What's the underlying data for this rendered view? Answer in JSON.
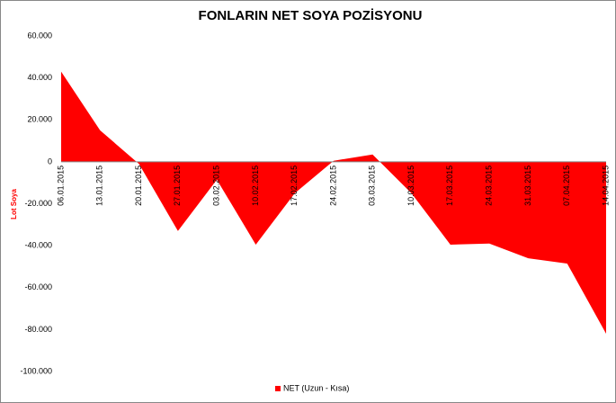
{
  "chart_data": {
    "type": "area",
    "title": "FONLARIN NET SOYA POZİSYONU",
    "y_label": "Lot Soya",
    "x": [
      "06.01.2015",
      "13.01.2015",
      "20.01.2015",
      "27.01.2015",
      "03.02.2015",
      "10.02.2015",
      "17.02.2015",
      "24.02.2015",
      "03.03.2015",
      "10.03.2015",
      "17.03.2015",
      "24.03.2015",
      "31.03.2015",
      "07.04.2015",
      "14.04.2015"
    ],
    "series": [
      {
        "name": "NET (Uzun - Kısa)",
        "color": "#ff0000",
        "values": [
          43000,
          15000,
          -1000,
          -33000,
          -8500,
          -39500,
          -15000,
          500,
          3500,
          -15000,
          -39500,
          -39000,
          -46000,
          -48500,
          -82000
        ]
      }
    ],
    "ylim": [
      -100000,
      60000
    ],
    "yticks": [
      {
        "value": -100000,
        "label": "-100.000"
      },
      {
        "value": -80000,
        "label": "-80.000"
      },
      {
        "value": -60000,
        "label": "-60.000"
      },
      {
        "value": -40000,
        "label": "-40.000"
      },
      {
        "value": -20000,
        "label": "-20.000"
      },
      0,
      {
        "value": 20000,
        "label": "20.000"
      },
      {
        "value": 40000,
        "label": "40.000"
      },
      {
        "value": 60000,
        "label": "60.000"
      }
    ],
    "legend": "bottom"
  }
}
